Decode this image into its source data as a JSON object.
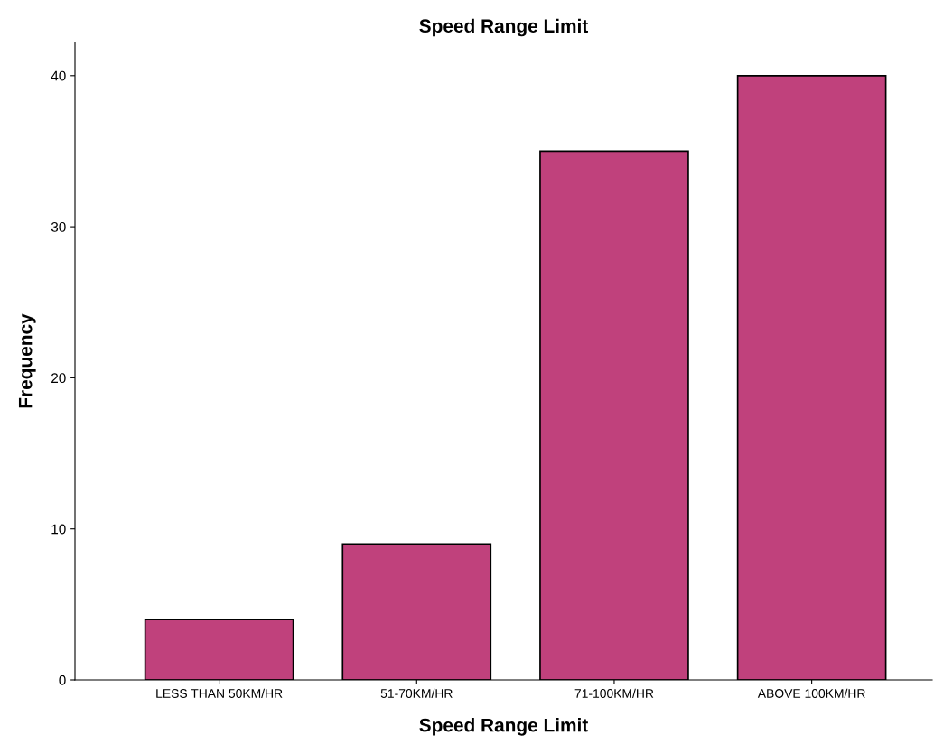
{
  "chart_data": {
    "type": "bar",
    "title": "Speed Range Limit",
    "xlabel": "Speed Range Limit",
    "ylabel": "Frequency",
    "categories": [
      "LESS THAN 50KM/HR",
      "51-70KM/HR",
      "71-100KM/HR",
      "ABOVE 100KM/HR"
    ],
    "values": [
      4,
      9,
      35,
      40
    ],
    "color": "#c0417c",
    "ylim": [
      0,
      42.2
    ],
    "yticks": [
      0,
      10,
      20,
      30,
      40
    ],
    "grid": false,
    "legend": false
  }
}
